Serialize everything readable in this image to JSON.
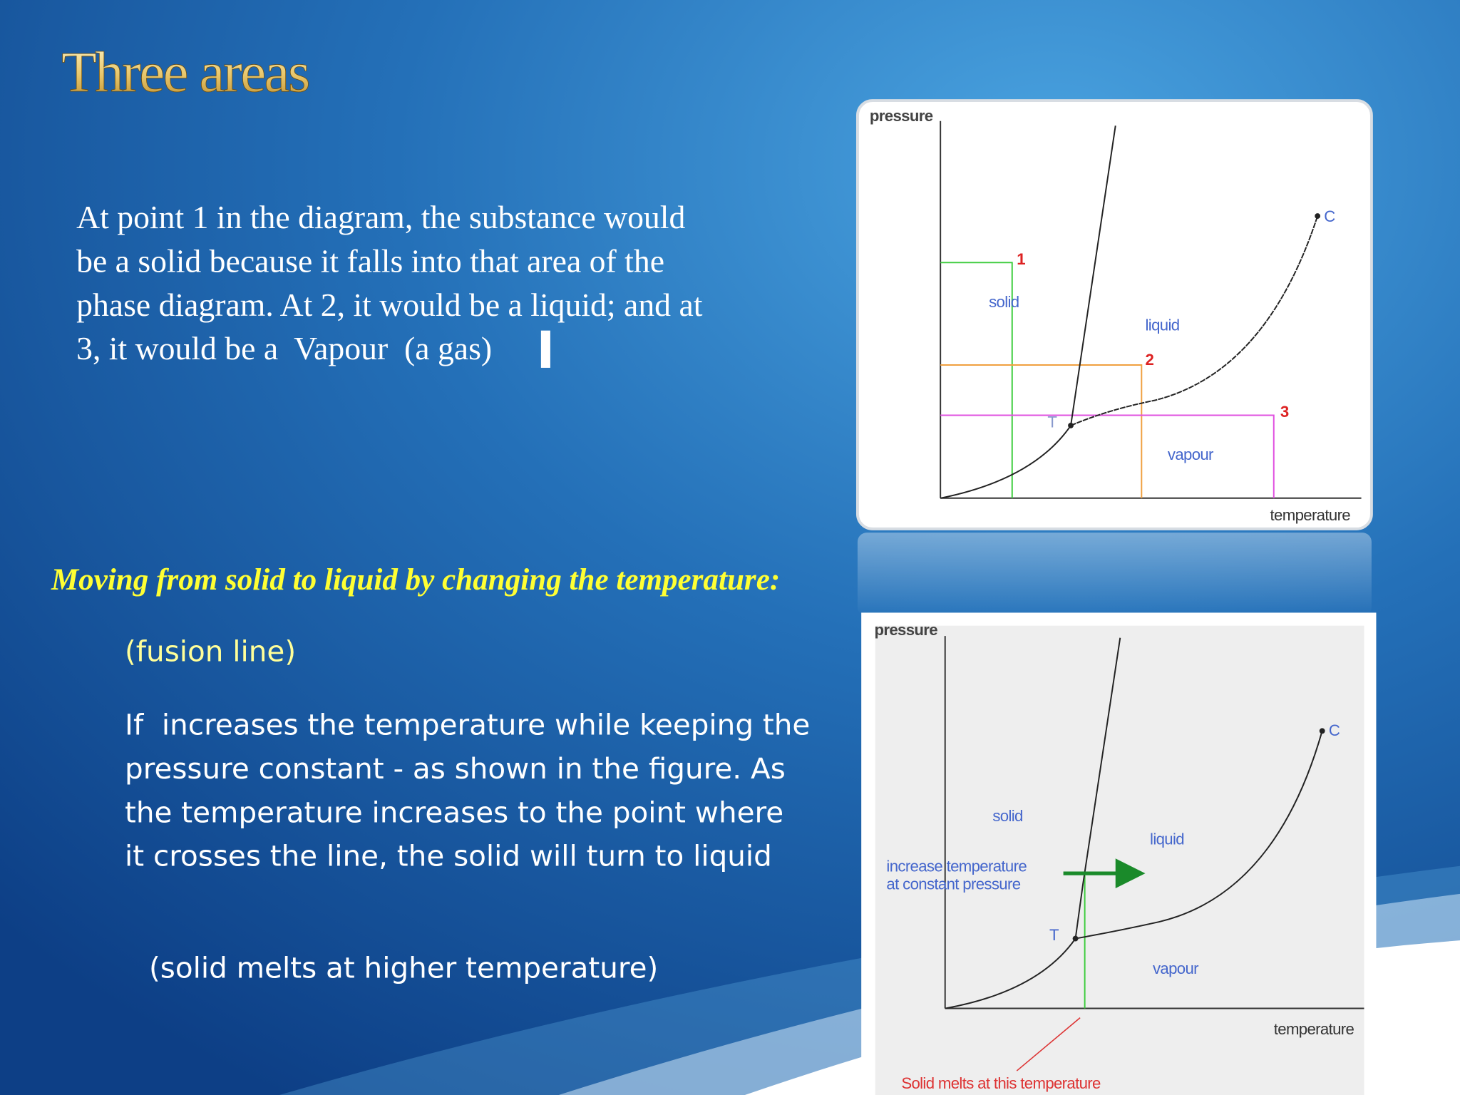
{
  "header": {
    "title": "Three areas"
  },
  "paragraph": {
    "lines": [
      "At point 1 in the diagram, the substance would",
      "be a solid because it falls into that area of the",
      "phase diagram. At 2, it would be a liquid; and at",
      "3, it would be a  Vapour  (a gas)"
    ]
  },
  "section": {
    "heading": "Moving from solid to liquid by changing the temperature:",
    "subheading": "(fusion line)",
    "body_lines": [
      "If  increases the temperature while keeping the",
      "pressure constant - as shown in the figure. As",
      "the temperature increases to the point where",
      "it crosses the line, the solid will turn to liquid"
    ],
    "note": "(solid melts at higher temperature)"
  },
  "diagrams": [
    {
      "y_axis": "pressure",
      "x_axis": "temperature",
      "regions": [
        "solid",
        "liquid",
        "vapour"
      ],
      "critical_point": "C",
      "triple_point": "T",
      "points": [
        "1",
        "2",
        "3"
      ]
    },
    {
      "y_axis": "pressure",
      "x_axis": "temperature",
      "regions": [
        "solid",
        "liquid",
        "vapour"
      ],
      "critical_point": "C",
      "triple_point": "T",
      "annotation_lines": [
        "increase temperature",
        "at constant pressure"
      ],
      "melt_note": "Solid melts at this temperature"
    }
  ]
}
